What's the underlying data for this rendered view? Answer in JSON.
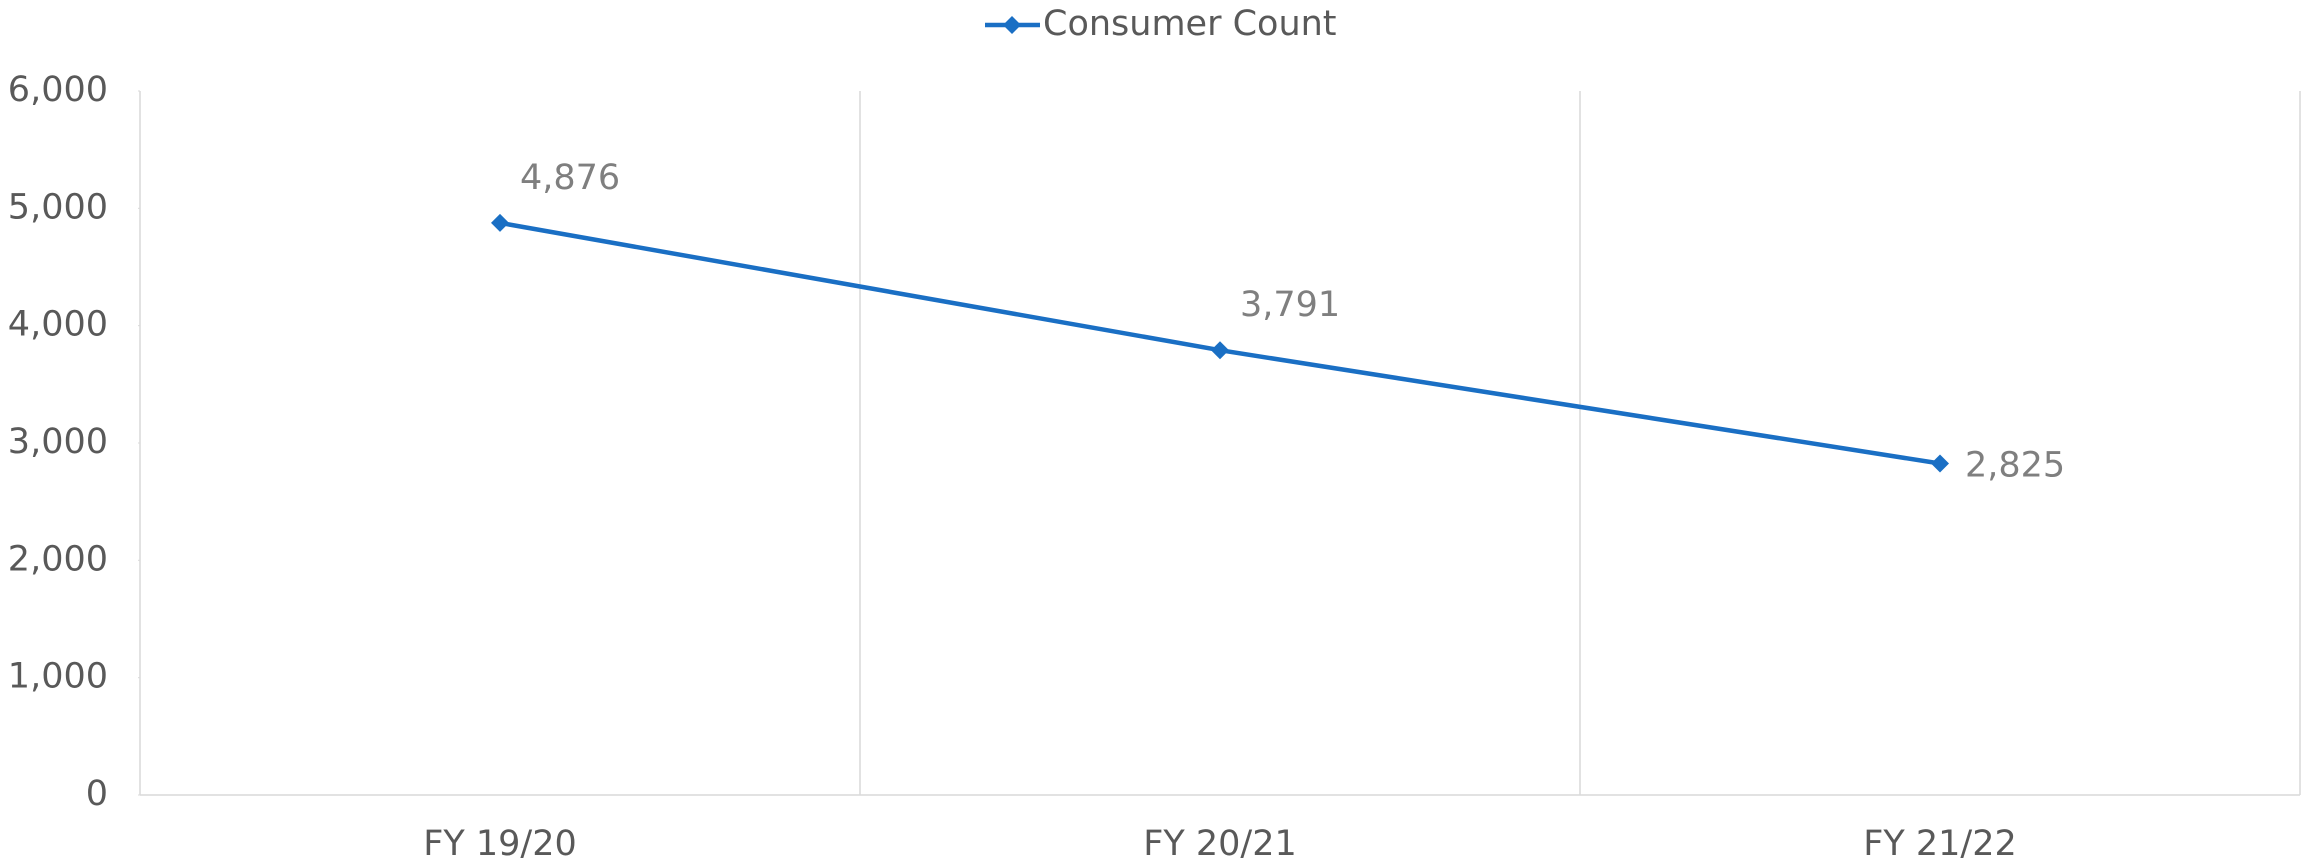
{
  "chart_data": {
    "type": "line",
    "categories": [
      "FY 19/20",
      "FY 20/21",
      "FY 21/22"
    ],
    "series": [
      {
        "name": "Consumer Count",
        "color": "#1a6fc4",
        "values": [
          4876,
          3791,
          2825
        ],
        "value_labels": [
          "4,876",
          "3,791",
          "2,825"
        ]
      }
    ],
    "ylim": [
      0,
      6000
    ],
    "yticks": [
      0,
      {
        "value": 1000,
        "label": "1,000"
      },
      {
        "value": 2000,
        "label": "2,000"
      },
      {
        "value": 3000,
        "label": "3,000"
      },
      {
        "value": 4000,
        "label": "4,000"
      },
      {
        "value": 5000,
        "label": "5,000"
      },
      {
        "value": 6000,
        "label": "6,000"
      }
    ],
    "legend": "top"
  }
}
